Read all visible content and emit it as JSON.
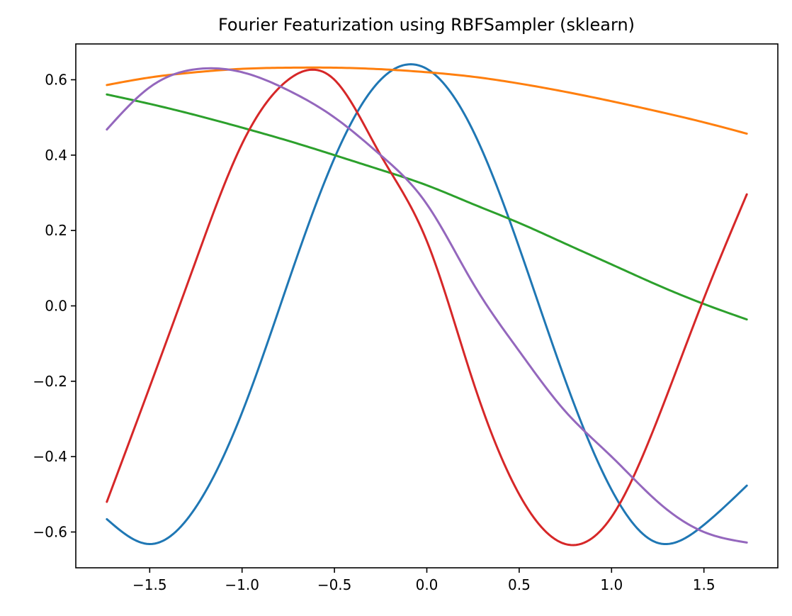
{
  "chart_data": {
    "type": "line",
    "title": "Fourier Featurization using RBFSampler (sklearn)",
    "xlabel": "",
    "ylabel": "",
    "xlim": [
      -1.9,
      1.9
    ],
    "ylim": [
      -0.695,
      0.695
    ],
    "x_ticks": [
      -1.5,
      -1.0,
      -0.5,
      0.0,
      0.5,
      1.0,
      1.5
    ],
    "x_tick_labels": [
      "−1.5",
      "−1.0",
      "−0.5",
      "0.0",
      "0.5",
      "1.0",
      "1.5"
    ],
    "y_ticks": [
      -0.6,
      -0.4,
      -0.2,
      0.0,
      0.2,
      0.4,
      0.6
    ],
    "y_tick_labels": [
      "−0.6",
      "−0.4",
      "−0.2",
      "0.0",
      "0.2",
      "0.4",
      "0.6"
    ],
    "grid": false,
    "legend": "none",
    "x": [
      -1.732,
      -1.5,
      -1.25,
      -1.0,
      -0.75,
      -0.5,
      -0.25,
      0.0,
      0.25,
      0.5,
      0.75,
      1.0,
      1.25,
      1.5,
      1.732
    ],
    "series": [
      {
        "color": "#1f77b4",
        "values": [
          -0.566,
          -0.632,
          -0.534,
          -0.283,
          0.063,
          0.392,
          0.6,
          0.629,
          0.465,
          0.155,
          -0.198,
          -0.488,
          -0.629,
          -0.581,
          -0.477
        ]
      },
      {
        "color": "#ff7f0e",
        "values": [
          0.586,
          0.606,
          0.62,
          0.629,
          0.632,
          0.632,
          0.628,
          0.62,
          0.608,
          0.59,
          0.568,
          0.543,
          0.516,
          0.487,
          0.457
        ]
      },
      {
        "color": "#2ca02c",
        "values": [
          0.561,
          0.536,
          0.506,
          0.473,
          0.438,
          0.4,
          0.361,
          0.32,
          0.27,
          0.22,
          0.165,
          0.11,
          0.055,
          0.005,
          -0.036
        ]
      },
      {
        "color": "#d62728",
        "values": [
          -0.52,
          -0.215,
          0.12,
          0.43,
          0.6,
          0.6,
          0.4,
          0.172,
          -0.2,
          -0.5,
          -0.632,
          -0.56,
          -0.3,
          0.02,
          0.296
        ]
      },
      {
        "color": "#9467bd",
        "values": [
          0.468,
          0.58,
          0.628,
          0.62,
          0.572,
          0.5,
          0.4,
          0.27,
          0.06,
          -0.12,
          -0.28,
          -0.4,
          -0.52,
          -0.6,
          -0.628
        ]
      }
    ]
  }
}
